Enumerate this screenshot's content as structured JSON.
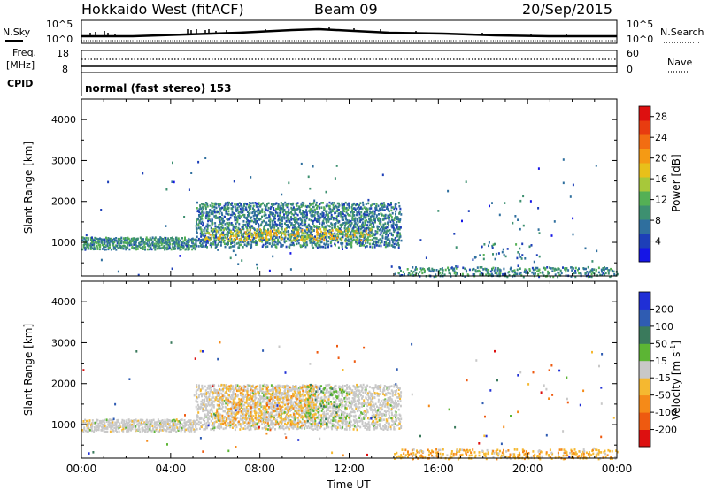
{
  "header": {
    "station": "Hokkaido West (fitACF)",
    "beam": "Beam 09",
    "date": "20/Sep/2015"
  },
  "strips": {
    "nsky_label": "N.Sky",
    "nsearch_label": "N.Search",
    "freq_label_1": "Freq.",
    "freq_label_2": "[MHz]",
    "nave_label": "Nave",
    "cpid_label": "CPID",
    "cpid_value": "normal (fast stereo) 153",
    "noise_left_ticks": [
      "10^5",
      "10^0"
    ],
    "noise_right_ticks": [
      "10^5",
      "10^0"
    ],
    "freq_left_ticks": [
      "18",
      "8"
    ],
    "freq_right_ticks": [
      "60",
      "0"
    ]
  },
  "chart_data": [
    {
      "type": "heatmap",
      "name": "power",
      "ylabel": "Slant Range [km]",
      "xlabel": "",
      "xlim": [
        "00:00",
        "24:00"
      ],
      "ylim": [
        180,
        4500
      ],
      "y_ticks": [
        "1000",
        "2000",
        "3000",
        "4000"
      ],
      "colorbar": {
        "label": "Power [dB]",
        "ticks": [
          "4",
          "8",
          "12",
          "16",
          "20",
          "24",
          "28"
        ],
        "range": [
          0,
          30
        ],
        "colors": [
          "#1515e6",
          "#1d3fb8",
          "#2f6f9e",
          "#3d9070",
          "#54b055",
          "#a7c83a",
          "#e8c01a",
          "#f59a14",
          "#f26d12",
          "#e83c10",
          "#dd1010"
        ]
      },
      "regions": [
        {
          "t": [
            0.0,
            5.1
          ],
          "r": [
            850,
            1150
          ],
          "value": 9,
          "density": 0.9
        },
        {
          "t": [
            5.1,
            14.3
          ],
          "r": [
            900,
            2000
          ],
          "value": 8,
          "density": 0.65
        },
        {
          "t": [
            5.5,
            13.0
          ],
          "r": [
            1050,
            1350
          ],
          "value": 17,
          "density": 0.35
        },
        {
          "t": [
            14.0,
            24.0
          ],
          "r": [
            180,
            420
          ],
          "value": 9,
          "density": 0.45
        },
        {
          "t": [
            17.5,
            20.5
          ],
          "r": [
            600,
            1000
          ],
          "value": 8,
          "density": 0.12
        },
        {
          "t": [
            0.0,
            24.0
          ],
          "r": [
            180,
            3100
          ],
          "value": 6,
          "density": 0.006
        }
      ]
    },
    {
      "type": "heatmap",
      "name": "velocity",
      "ylabel": "Slant Range [km]",
      "xlabel": "Time UT",
      "xlim": [
        "00:00",
        "24:00"
      ],
      "ylim": [
        180,
        4500
      ],
      "x_ticks": [
        "00:00",
        "04:00",
        "08:00",
        "12:00",
        "16:00",
        "20:00",
        "00:00"
      ],
      "y_ticks": [
        "1000",
        "2000",
        "3000",
        "4000"
      ],
      "colorbar": {
        "label": "Velocity",
        "units": "m s",
        "units_exp": "-1",
        "ticks": [
          "200",
          "100",
          "50",
          "15",
          "-15",
          "-50",
          "-100",
          "-200"
        ],
        "colors": [
          "#1f2fd6",
          "#2f5cb2",
          "#3a7a5c",
          "#5cb534",
          "#c8c8c8",
          "#f5b830",
          "#f58a18",
          "#ee5a10",
          "#dd1010"
        ]
      },
      "regions": [
        {
          "t": [
            0.0,
            5.1
          ],
          "r": [
            850,
            1150
          ],
          "value": "ground",
          "density": 0.9
        },
        {
          "t": [
            5.1,
            14.3
          ],
          "r": [
            900,
            2000
          ],
          "value": "ground",
          "density": 0.65
        },
        {
          "t": [
            6.0,
            10.5
          ],
          "r": [
            1000,
            2000
          ],
          "value": "negative",
          "density": 0.3
        },
        {
          "t": [
            10.0,
            12.0
          ],
          "r": [
            1000,
            2000
          ],
          "value": "positive",
          "density": 0.2
        },
        {
          "t": [
            14.0,
            24.0
          ],
          "r": [
            180,
            420
          ],
          "value": "negative",
          "density": 0.45
        },
        {
          "t": [
            0.0,
            24.0
          ],
          "r": [
            180,
            3100
          ],
          "value": "mixed",
          "density": 0.006
        }
      ]
    }
  ]
}
